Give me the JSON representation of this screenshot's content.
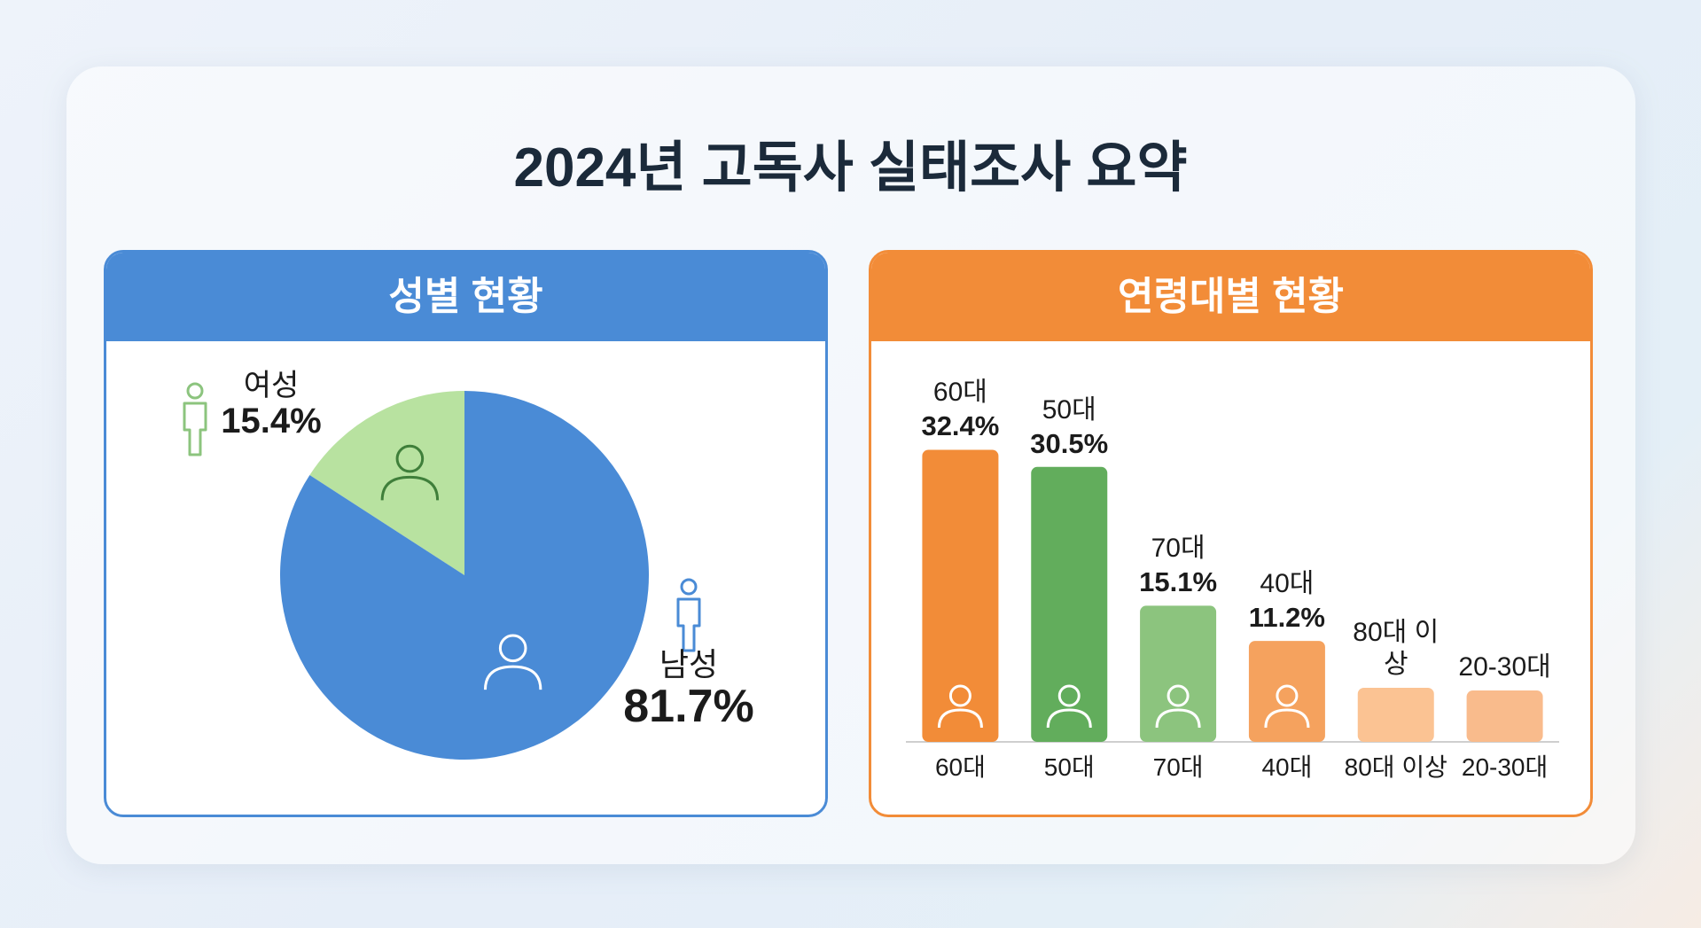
{
  "title": "2024년 고독사 실태조사 요약",
  "chart_data": [
    {
      "type": "pie",
      "title": "성별 현황",
      "categories": [
        "여성",
        "남성"
      ],
      "values": [
        15.4,
        81.7
      ],
      "value_labels": [
        "15.4%",
        "81.7%"
      ],
      "colors": [
        "#b8e2a0",
        "#4a8bd6"
      ]
    },
    {
      "type": "bar",
      "title": "연령대별 현황",
      "categories": [
        "60대",
        "50대",
        "70대",
        "40대",
        "80대 이상",
        "20-30대"
      ],
      "values": [
        32.4,
        30.5,
        15.1,
        11.2,
        6.0,
        5.7
      ],
      "value_labels": [
        "32.4%",
        "30.5%",
        "15.1%",
        "11.2%",
        null,
        null
      ],
      "colors": [
        "#f28c38",
        "#62ad5c",
        "#8cc47e",
        "#f5a25e",
        "#fbc393",
        "#f9bb8c"
      ],
      "ylim": [
        0,
        35
      ]
    }
  ]
}
